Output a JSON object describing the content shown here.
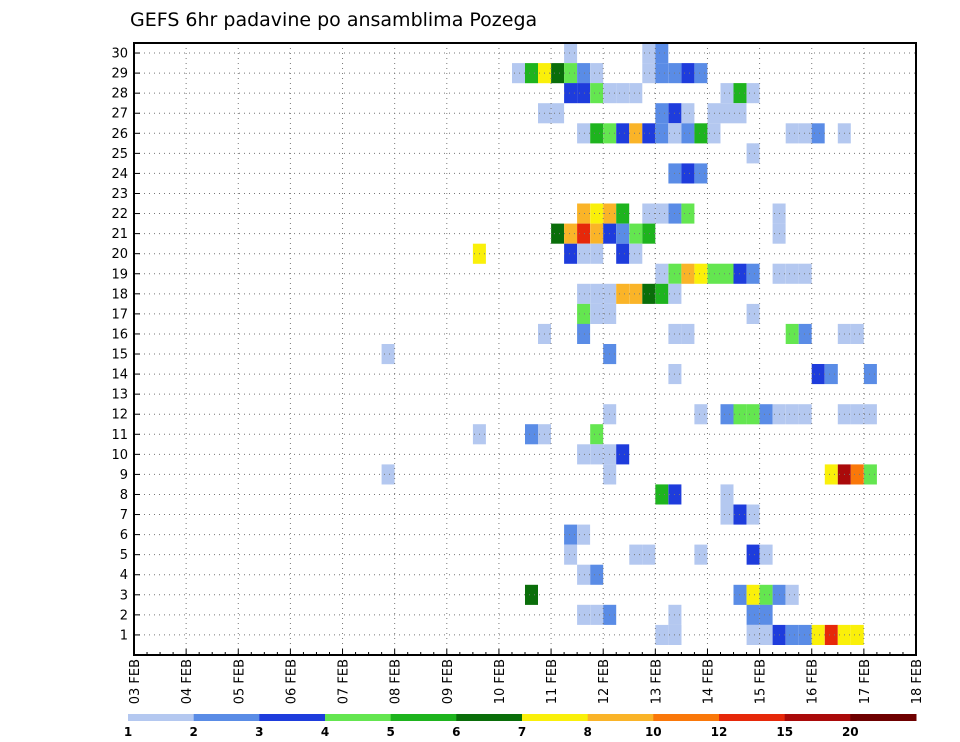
{
  "chart_data": {
    "type": "heatmap",
    "title": "GEFS 6hr padavine po ansamblima Pozega",
    "x_tick_labels": [
      "03 FEB",
      "04 FEB",
      "05 FEB",
      "06 FEB",
      "07 FEB",
      "08 FEB",
      "09 FEB",
      "10 FEB",
      "11 FEB",
      "12 FEB",
      "13 FEB",
      "14 FEB",
      "15 FEB",
      "16 FEB",
      "17 FEB",
      "18 FEB"
    ],
    "y_tick_labels": [
      "1",
      "2",
      "3",
      "4",
      "5",
      "6",
      "7",
      "8",
      "9",
      "10",
      "11",
      "12",
      "13",
      "14",
      "15",
      "16",
      "17",
      "18",
      "19",
      "20",
      "21",
      "22",
      "23",
      "24",
      "25",
      "26",
      "27",
      "28",
      "29",
      "30"
    ],
    "x_steps_per_day": 4,
    "x_total_steps": 60,
    "y_range": [
      0,
      30
    ],
    "grid": true,
    "colorbar": {
      "tick_labels": [
        "1",
        "2",
        "3",
        "4",
        "5",
        "6",
        "7",
        "8",
        "10",
        "12",
        "15",
        "20"
      ],
      "colors": [
        "#b4c8f0",
        "#5a8ce6",
        "#1e3cdc",
        "#64e650",
        "#1eb41e",
        "#0a6e0a",
        "#faf00a",
        "#fab428",
        "#fa780a",
        "#e6280a",
        "#aa0a0a",
        "#6e0000"
      ],
      "level_values": [
        1,
        2,
        3,
        4,
        5,
        6,
        7,
        8,
        10,
        12,
        15,
        20
      ]
    },
    "cells": [
      {
        "t": 45,
        "m": 30,
        "v": 1
      },
      {
        "t": 51,
        "m": 30,
        "v": 1
      },
      {
        "t": 52,
        "m": 30,
        "v": 2
      },
      {
        "t": 41,
        "m": 29,
        "v": 1
      },
      {
        "t": 42,
        "m": 29,
        "v": 5
      },
      {
        "t": 43,
        "m": 29,
        "v": 7
      },
      {
        "t": 44,
        "m": 29,
        "v": 6
      },
      {
        "t": 45,
        "m": 29,
        "v": 4
      },
      {
        "t": 46,
        "m": 29,
        "v": 2
      },
      {
        "t": 47,
        "m": 29,
        "v": 1
      },
      {
        "t": 54,
        "m": 29,
        "v": 3
      },
      {
        "t": 55,
        "m": 29,
        "v": 2
      },
      {
        "t": 51,
        "m": 29,
        "v": 1
      },
      {
        "t": 52,
        "m": 29,
        "v": 2
      },
      {
        "t": 53,
        "m": 29,
        "v": 2
      },
      {
        "t": 45,
        "m": 28,
        "v": 3
      },
      {
        "t": 46,
        "m": 28,
        "v": 3
      },
      {
        "t": 47,
        "m": 28,
        "v": 4
      },
      {
        "t": 48,
        "m": 28,
        "v": 1
      },
      {
        "t": 49,
        "m": 28,
        "v": 1
      },
      {
        "t": 50,
        "m": 28,
        "v": 1
      },
      {
        "t": 57,
        "m": 28,
        "v": 1
      },
      {
        "t": 58,
        "m": 28,
        "v": 5
      },
      {
        "t": 59,
        "m": 28,
        "v": 1
      },
      {
        "t": 43,
        "m": 27,
        "v": 1
      },
      {
        "t": 44,
        "m": 27,
        "v": 1
      },
      {
        "t": 52,
        "m": 27,
        "v": 2
      },
      {
        "t": 53,
        "m": 27,
        "v": 3
      },
      {
        "t": 54,
        "m": 27,
        "v": 1
      },
      {
        "t": 56,
        "m": 27,
        "v": 1
      },
      {
        "t": 57,
        "m": 27,
        "v": 1
      },
      {
        "t": 58,
        "m": 27,
        "v": 1
      },
      {
        "t": 46,
        "m": 26,
        "v": 1
      },
      {
        "t": 47,
        "m": 26,
        "v": 5
      },
      {
        "t": 48,
        "m": 26,
        "v": 4
      },
      {
        "t": 49,
        "m": 26,
        "v": 3
      },
      {
        "t": 50,
        "m": 26,
        "v": 9
      },
      {
        "t": 51,
        "m": 26,
        "v": 3
      },
      {
        "t": 52,
        "m": 26,
        "v": 2
      },
      {
        "t": 53,
        "m": 26,
        "v": 1
      },
      {
        "t": 54,
        "m": 26,
        "v": 2
      },
      {
        "t": 55,
        "m": 26,
        "v": 5
      },
      {
        "t": 56,
        "m": 26,
        "v": 1
      },
      {
        "t": 53,
        "m": 26,
        "v": 1
      },
      {
        "t": 62,
        "m": 26,
        "v": 1
      },
      {
        "t": 63,
        "m": 26,
        "v": 1
      },
      {
        "t": 64,
        "m": 26,
        "v": 2
      },
      {
        "t": 66,
        "m": 26,
        "v": 1
      },
      {
        "t": 59,
        "m": 25,
        "v": 1
      },
      {
        "t": 53,
        "m": 24,
        "v": 2
      },
      {
        "t": 54,
        "m": 24,
        "v": 3
      },
      {
        "t": 55,
        "m": 24,
        "v": 2
      },
      {
        "t": 46,
        "m": 22,
        "v": 9
      },
      {
        "t": 47,
        "m": 22,
        "v": 7
      },
      {
        "t": 48,
        "m": 22,
        "v": 8
      },
      {
        "t": 49,
        "m": 22,
        "v": 5
      },
      {
        "t": 51,
        "m": 22,
        "v": 1
      },
      {
        "t": 52,
        "m": 22,
        "v": 1
      },
      {
        "t": 53,
        "m": 22,
        "v": 2
      },
      {
        "t": 54,
        "m": 22,
        "v": 4
      },
      {
        "t": 61,
        "m": 22,
        "v": 1
      },
      {
        "t": 44,
        "m": 21,
        "v": 6
      },
      {
        "t": 45,
        "m": 21,
        "v": 9
      },
      {
        "t": 46,
        "m": 21,
        "v": 12
      },
      {
        "t": 47,
        "m": 21,
        "v": 9
      },
      {
        "t": 48,
        "m": 21,
        "v": 3
      },
      {
        "t": 49,
        "m": 21,
        "v": 2
      },
      {
        "t": 50,
        "m": 21,
        "v": 4
      },
      {
        "t": 51,
        "m": 21,
        "v": 5
      },
      {
        "t": 61,
        "m": 21,
        "v": 1
      },
      {
        "t": 38,
        "m": 20,
        "v": 7
      },
      {
        "t": 45,
        "m": 20,
        "v": 3
      },
      {
        "t": 46,
        "m": 20,
        "v": 1
      },
      {
        "t": 47,
        "m": 20,
        "v": 1
      },
      {
        "t": 49,
        "m": 20,
        "v": 3
      },
      {
        "t": 50,
        "m": 20,
        "v": 1
      },
      {
        "t": 52,
        "m": 19,
        "v": 1
      },
      {
        "t": 53,
        "m": 19,
        "v": 4
      },
      {
        "t": 54,
        "m": 19,
        "v": 8
      },
      {
        "t": 55,
        "m": 19,
        "v": 7
      },
      {
        "t": 56,
        "m": 19,
        "v": 4
      },
      {
        "t": 57,
        "m": 19,
        "v": 4
      },
      {
        "t": 58,
        "m": 19,
        "v": 3
      },
      {
        "t": 59,
        "m": 19,
        "v": 2
      },
      {
        "t": 61,
        "m": 19,
        "v": 1
      },
      {
        "t": 62,
        "m": 19,
        "v": 1
      },
      {
        "t": 63,
        "m": 19,
        "v": 1
      },
      {
        "t": 46,
        "m": 18,
        "v": 1
      },
      {
        "t": 47,
        "m": 18,
        "v": 1
      },
      {
        "t": 48,
        "m": 18,
        "v": 1
      },
      {
        "t": 49,
        "m": 18,
        "v": 8
      },
      {
        "t": 50,
        "m": 18,
        "v": 8
      },
      {
        "t": 51,
        "m": 18,
        "v": 6
      },
      {
        "t": 52,
        "m": 18,
        "v": 5
      },
      {
        "t": 53,
        "m": 18,
        "v": 1
      },
      {
        "t": 46,
        "m": 17,
        "v": 4
      },
      {
        "t": 47,
        "m": 17,
        "v": 1
      },
      {
        "t": 48,
        "m": 17,
        "v": 1
      },
      {
        "t": 59,
        "m": 17,
        "v": 1
      },
      {
        "t": 43,
        "m": 16,
        "v": 1
      },
      {
        "t": 46,
        "m": 16,
        "v": 2
      },
      {
        "t": 53,
        "m": 16,
        "v": 1
      },
      {
        "t": 54,
        "m": 16,
        "v": 1
      },
      {
        "t": 62,
        "m": 16,
        "v": 4
      },
      {
        "t": 63,
        "m": 16,
        "v": 2
      },
      {
        "t": 66,
        "m": 16,
        "v": 1
      },
      {
        "t": 67,
        "m": 16,
        "v": 1
      },
      {
        "t": 31,
        "m": 15,
        "v": 1
      },
      {
        "t": 48,
        "m": 15,
        "v": 2
      },
      {
        "t": 53,
        "m": 14,
        "v": 1
      },
      {
        "t": 64,
        "m": 14,
        "v": 3
      },
      {
        "t": 65,
        "m": 14,
        "v": 2
      },
      {
        "t": 68,
        "m": 14,
        "v": 2
      },
      {
        "t": 48,
        "m": 12,
        "v": 1
      },
      {
        "t": 55,
        "m": 12,
        "v": 1
      },
      {
        "t": 57,
        "m": 12,
        "v": 2
      },
      {
        "t": 58,
        "m": 12,
        "v": 4
      },
      {
        "t": 59,
        "m": 12,
        "v": 4
      },
      {
        "t": 60,
        "m": 12,
        "v": 2
      },
      {
        "t": 61,
        "m": 12,
        "v": 1
      },
      {
        "t": 62,
        "m": 12,
        "v": 1
      },
      {
        "t": 63,
        "m": 12,
        "v": 1
      },
      {
        "t": 66,
        "m": 12,
        "v": 1
      },
      {
        "t": 67,
        "m": 12,
        "v": 1
      },
      {
        "t": 68,
        "m": 12,
        "v": 1
      },
      {
        "t": 38,
        "m": 11,
        "v": 1
      },
      {
        "t": 42,
        "m": 11,
        "v": 2
      },
      {
        "t": 43,
        "m": 11,
        "v": 1
      },
      {
        "t": 47,
        "m": 11,
        "v": 4
      },
      {
        "t": 46,
        "m": 10,
        "v": 1
      },
      {
        "t": 47,
        "m": 10,
        "v": 1
      },
      {
        "t": 48,
        "m": 10,
        "v": 1
      },
      {
        "t": 49,
        "m": 10,
        "v": 3
      },
      {
        "t": 31,
        "m": 9,
        "v": 1
      },
      {
        "t": 48,
        "m": 9,
        "v": 1
      },
      {
        "t": 65,
        "m": 9,
        "v": 7
      },
      {
        "t": 66,
        "m": 9,
        "v": 15
      },
      {
        "t": 67,
        "m": 9,
        "v": 10
      },
      {
        "t": 68,
        "m": 9,
        "v": 4
      },
      {
        "t": 52,
        "m": 8,
        "v": 5
      },
      {
        "t": 53,
        "m": 8,
        "v": 3
      },
      {
        "t": 57,
        "m": 8,
        "v": 1
      },
      {
        "t": 57,
        "m": 7,
        "v": 1
      },
      {
        "t": 58,
        "m": 7,
        "v": 3
      },
      {
        "t": 59,
        "m": 7,
        "v": 1
      },
      {
        "t": 45,
        "m": 6,
        "v": 2
      },
      {
        "t": 46,
        "m": 6,
        "v": 1
      },
      {
        "t": 45,
        "m": 5,
        "v": 1
      },
      {
        "t": 50,
        "m": 5,
        "v": 1
      },
      {
        "t": 51,
        "m": 5,
        "v": 1
      },
      {
        "t": 55,
        "m": 5,
        "v": 1
      },
      {
        "t": 59,
        "m": 5,
        "v": 3
      },
      {
        "t": 60,
        "m": 5,
        "v": 1
      },
      {
        "t": 46,
        "m": 4,
        "v": 1
      },
      {
        "t": 47,
        "m": 4,
        "v": 2
      },
      {
        "t": 42,
        "m": 3,
        "v": 6
      },
      {
        "t": 58,
        "m": 3,
        "v": 2
      },
      {
        "t": 59,
        "m": 3,
        "v": 7
      },
      {
        "t": 60,
        "m": 3,
        "v": 4
      },
      {
        "t": 61,
        "m": 3,
        "v": 2
      },
      {
        "t": 62,
        "m": 3,
        "v": 1
      },
      {
        "t": 46,
        "m": 2,
        "v": 1
      },
      {
        "t": 47,
        "m": 2,
        "v": 1
      },
      {
        "t": 48,
        "m": 2,
        "v": 2
      },
      {
        "t": 53,
        "m": 2,
        "v": 1
      },
      {
        "t": 59,
        "m": 2,
        "v": 2
      },
      {
        "t": 60,
        "m": 2,
        "v": 2
      },
      {
        "t": 52,
        "m": 1,
        "v": 1
      },
      {
        "t": 53,
        "m": 1,
        "v": 1
      },
      {
        "t": 53,
        "m": 1,
        "v": 1
      },
      {
        "t": 59,
        "m": 1,
        "v": 1
      },
      {
        "t": 60,
        "m": 1,
        "v": 1
      },
      {
        "t": 61,
        "m": 1,
        "v": 3
      },
      {
        "t": 62,
        "m": 1,
        "v": 2
      },
      {
        "t": 63,
        "m": 1,
        "v": 2
      },
      {
        "t": 64,
        "m": 1,
        "v": 7
      },
      {
        "t": 65,
        "m": 1,
        "v": 12
      },
      {
        "t": 66,
        "m": 1,
        "v": 7
      },
      {
        "t": 67,
        "m": 1,
        "v": 7
      }
    ]
  }
}
